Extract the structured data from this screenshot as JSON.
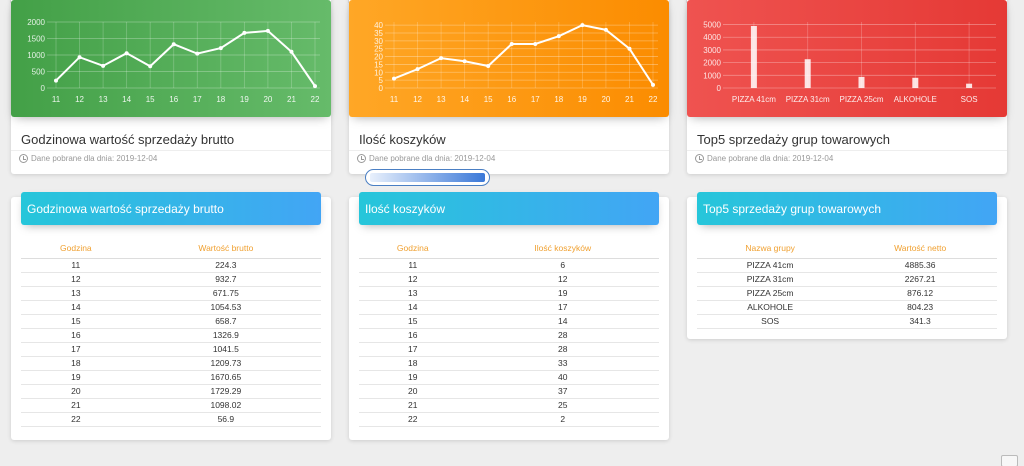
{
  "colors": {
    "green": "#4caf50",
    "orange": "#ff9800",
    "red": "#ef5350",
    "blue": "#42a5f5",
    "th": "#f0a030"
  },
  "cards": [
    {
      "title": "Godzinowa wartość sprzedaży brutto",
      "footer": "Dane pobrane dla dnia: 2019-12-04",
      "chart_data": {
        "type": "line",
        "x": [
          "11",
          "12",
          "13",
          "14",
          "15",
          "16",
          "17",
          "18",
          "19",
          "20",
          "21",
          "22"
        ],
        "values": [
          224.3,
          932.7,
          671.75,
          1054.53,
          658.7,
          1326.9,
          1041.5,
          1209.73,
          1670.65,
          1729.29,
          1098.02,
          56.9
        ],
        "yticks": [
          "0",
          "500",
          "1000",
          "1500",
          "2000"
        ],
        "ylim": [
          0,
          2000
        ]
      }
    },
    {
      "title": "Ilość koszyków",
      "footer": "Dane pobrane dla dnia: 2019-12-04",
      "chart_data": {
        "type": "line",
        "x": [
          "11",
          "12",
          "13",
          "14",
          "15",
          "16",
          "17",
          "18",
          "19",
          "20",
          "21",
          "22"
        ],
        "values": [
          6,
          12,
          19,
          17,
          14,
          28,
          28,
          33,
          40,
          37,
          25,
          2
        ],
        "yticks": [
          "0",
          "5",
          "10",
          "15",
          "20",
          "25",
          "30",
          "35",
          "40"
        ],
        "ylim": [
          0,
          42
        ]
      }
    },
    {
      "title": "Top5 sprzedaży grup towarowych",
      "footer": "Dane pobrane dla dnia: 2019-12-04",
      "chart_data": {
        "type": "bar",
        "categories": [
          "PIZZA 41cm",
          "PIZZA 31cm",
          "PIZZA 25cm",
          "ALKOHOLE",
          "SOS"
        ],
        "values": [
          4885.36,
          2267.21,
          876.12,
          804.23,
          341.3
        ],
        "yticks": [
          "0",
          "1000",
          "2000",
          "3000",
          "4000",
          "5000"
        ],
        "ylim": [
          0,
          5200
        ]
      }
    }
  ],
  "tables": [
    {
      "title": "Godzinowa wartość sprzedaży brutto",
      "headers": [
        "Godzina",
        "Wartość brutto"
      ],
      "rows": [
        [
          "11",
          "224.3"
        ],
        [
          "12",
          "932.7"
        ],
        [
          "13",
          "671.75"
        ],
        [
          "14",
          "1054.53"
        ],
        [
          "15",
          "658.7"
        ],
        [
          "16",
          "1326.9"
        ],
        [
          "17",
          "1041.5"
        ],
        [
          "18",
          "1209.73"
        ],
        [
          "19",
          "1670.65"
        ],
        [
          "20",
          "1729.29"
        ],
        [
          "21",
          "1098.02"
        ],
        [
          "22",
          "56.9"
        ]
      ]
    },
    {
      "title": "Ilość koszyków",
      "headers": [
        "Godzina",
        "Ilość koszyków"
      ],
      "rows": [
        [
          "11",
          "6"
        ],
        [
          "12",
          "12"
        ],
        [
          "13",
          "19"
        ],
        [
          "14",
          "17"
        ],
        [
          "15",
          "14"
        ],
        [
          "16",
          "28"
        ],
        [
          "17",
          "28"
        ],
        [
          "18",
          "33"
        ],
        [
          "19",
          "40"
        ],
        [
          "20",
          "37"
        ],
        [
          "21",
          "25"
        ],
        [
          "22",
          "2"
        ]
      ]
    },
    {
      "title": "Top5 sprzedaży grup towarowych",
      "headers": [
        "Nazwa grupy",
        "Wartość netto"
      ],
      "rows": [
        [
          "PIZZA 41cm",
          "4885.36"
        ],
        [
          "PIZZA 31cm",
          "2267.21"
        ],
        [
          "PIZZA 25cm",
          "876.12"
        ],
        [
          "ALKOHOLE",
          "804.23"
        ],
        [
          "SOS",
          "341.3"
        ]
      ]
    }
  ],
  "progress": {
    "value": 1.0,
    "text": "..."
  }
}
